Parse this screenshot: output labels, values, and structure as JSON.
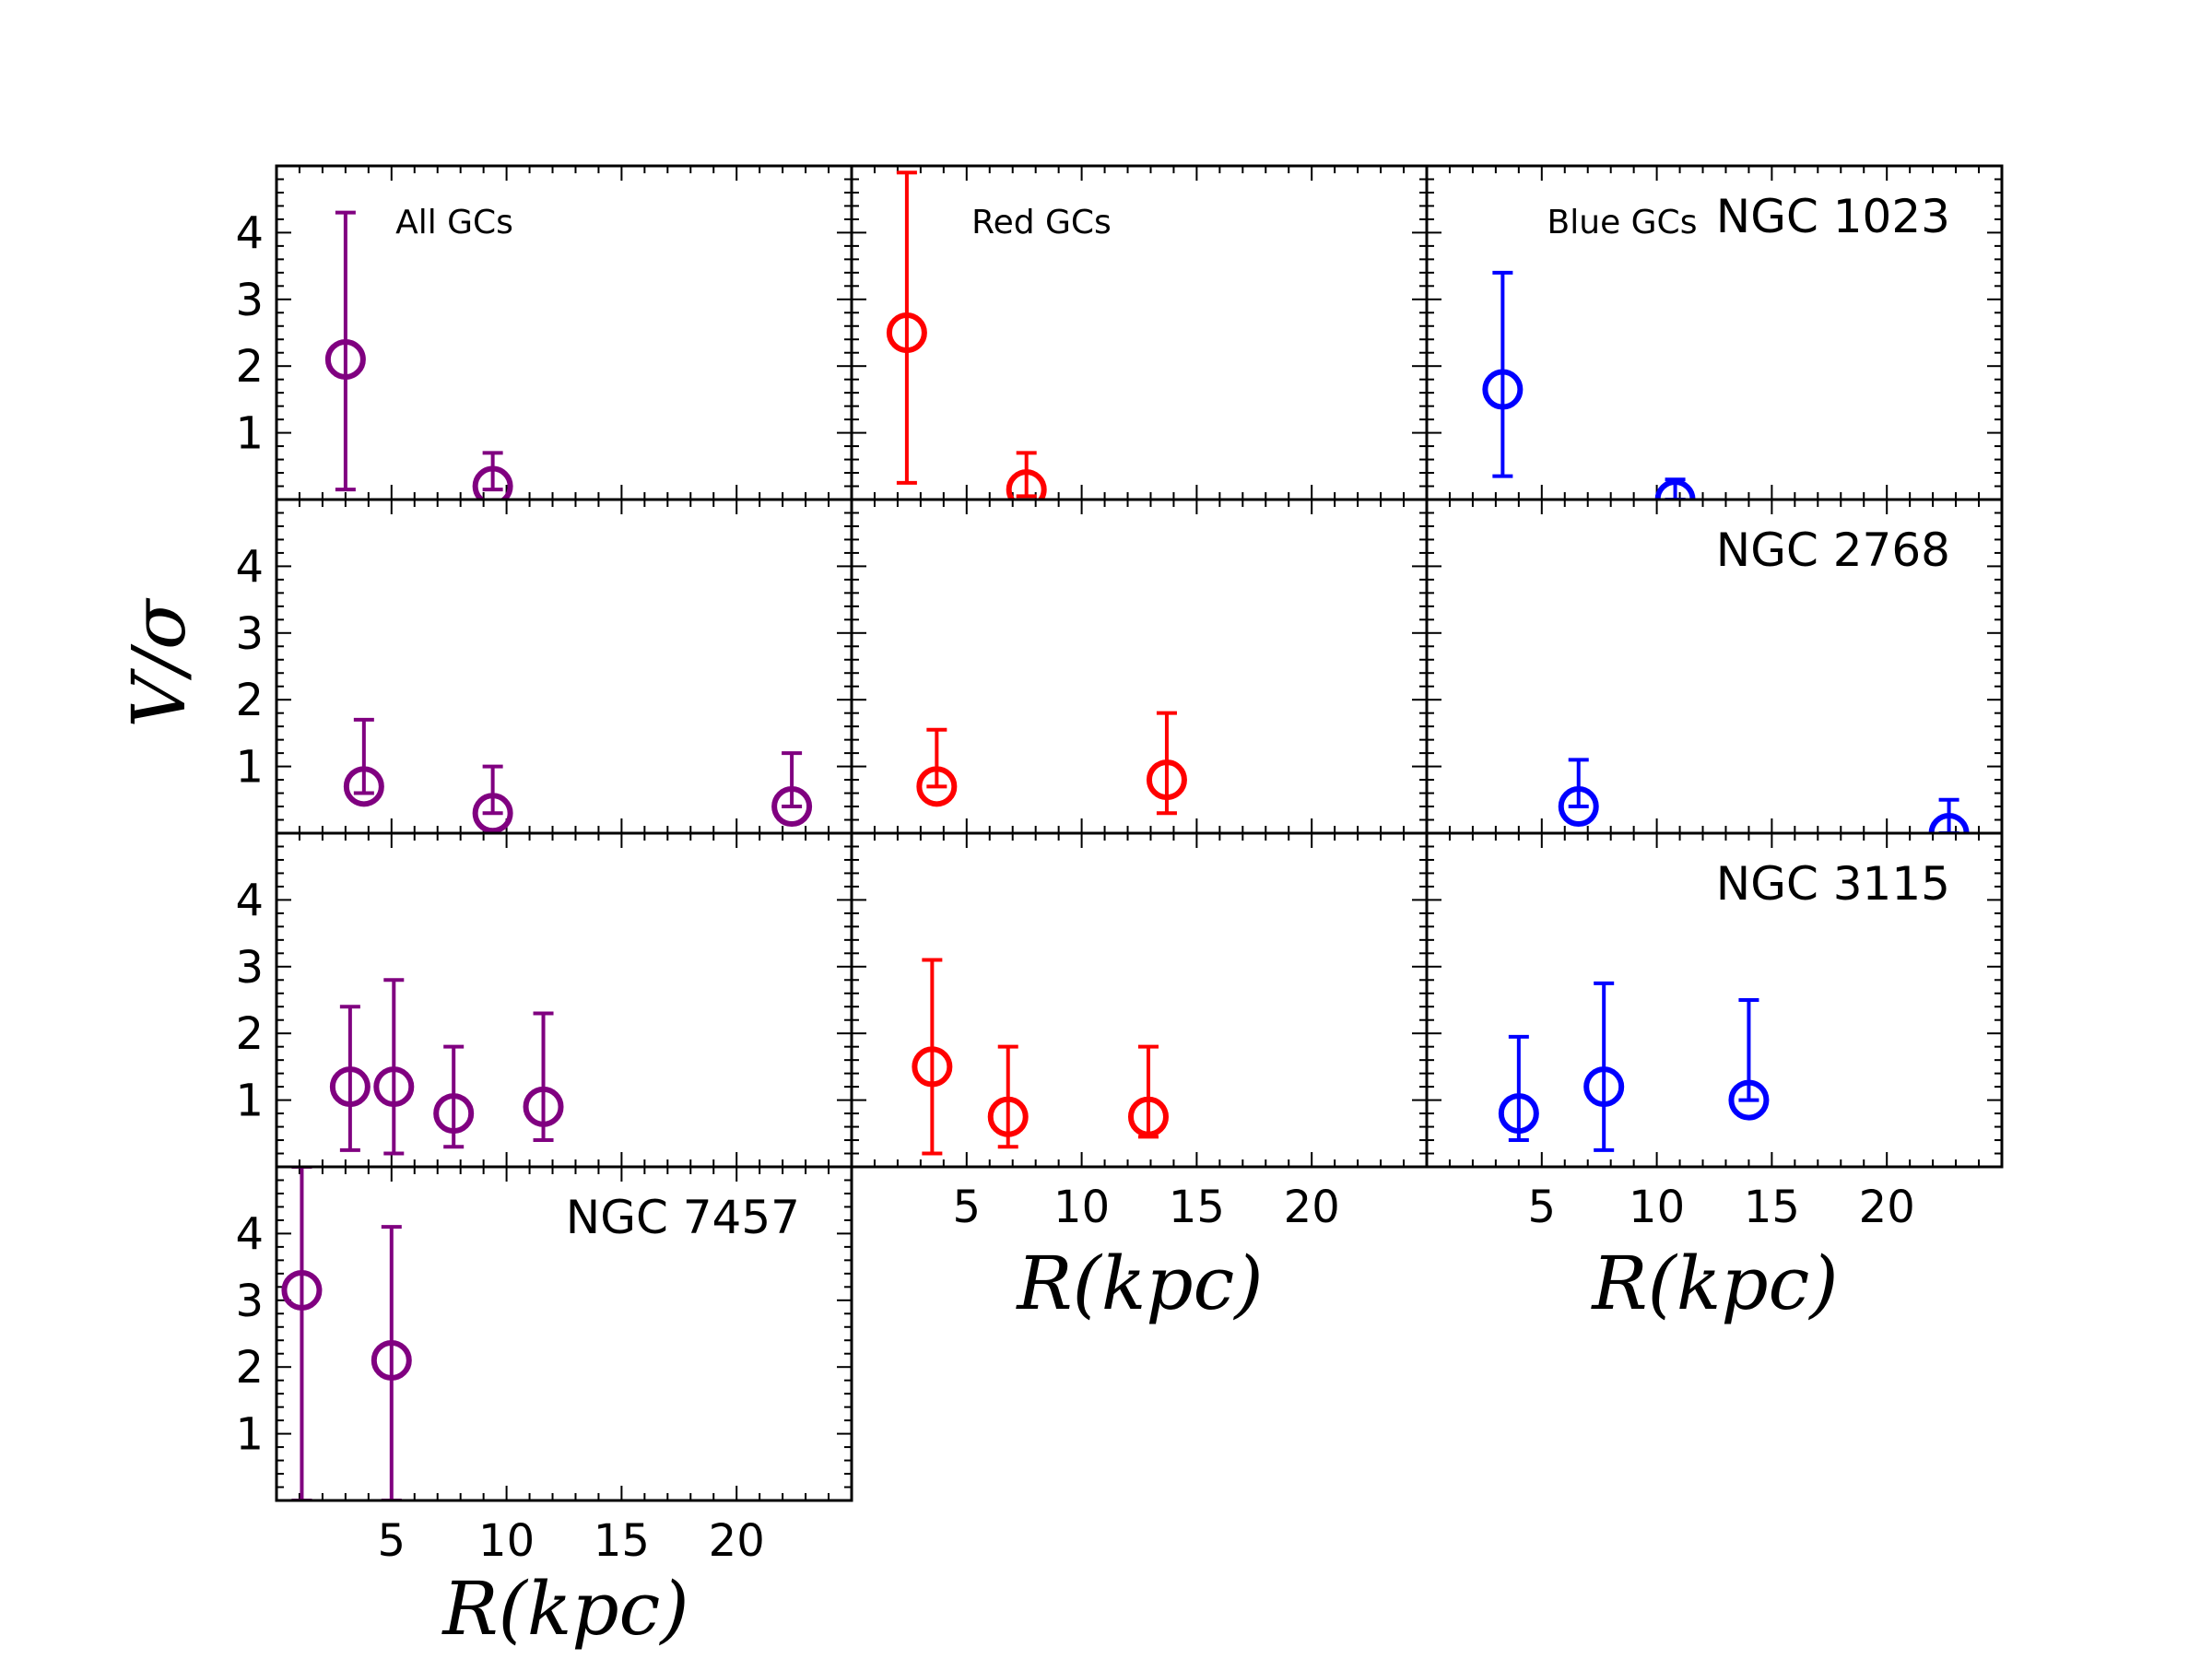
{
  "chart_data": {
    "type": "scatter",
    "xlabel": "R(kpc)",
    "ylabel": "V/σ",
    "xlim": [
      0,
      25
    ],
    "ylim": [
      0,
      5
    ],
    "xticks": [
      5,
      10,
      15,
      20
    ],
    "yticks": [
      1,
      2,
      3,
      4
    ],
    "columns": [
      {
        "name": "All GCs",
        "color": "#800080"
      },
      {
        "name": "Red GCs",
        "color": "#ff0000"
      },
      {
        "name": "Blue GCs",
        "color": "#0000ff"
      }
    ],
    "rows": [
      {
        "galaxy": "NGC 1023",
        "panels": [
          [
            {
              "x": 3.0,
              "y": 2.1,
              "lo": 0.15,
              "hi": 4.3
            },
            {
              "x": 9.4,
              "y": 0.2,
              "lo": 0.15,
              "hi": 0.7
            }
          ],
          [
            {
              "x": 2.4,
              "y": 2.5,
              "lo": 0.25,
              "hi": 4.9
            },
            {
              "x": 7.6,
              "y": 0.15,
              "lo": 0.05,
              "hi": 0.7
            }
          ],
          [
            {
              "x": 3.3,
              "y": 1.65,
              "lo": 0.35,
              "hi": 3.4
            },
            {
              "x": 10.8,
              "y": 0.0,
              "lo": 0.0,
              "hi": 0.3
            }
          ]
        ]
      },
      {
        "galaxy": "NGC 2768",
        "panels": [
          [
            {
              "x": 3.8,
              "y": 0.7,
              "lo": 0.6,
              "hi": 1.7
            },
            {
              "x": 9.4,
              "y": 0.3,
              "lo": 0.3,
              "hi": 1.0
            },
            {
              "x": 22.4,
              "y": 0.4,
              "lo": 0.4,
              "hi": 1.2
            }
          ],
          [
            {
              "x": 3.7,
              "y": 0.7,
              "lo": 0.7,
              "hi": 1.55
            },
            {
              "x": 13.7,
              "y": 0.8,
              "lo": 0.3,
              "hi": 1.8
            }
          ],
          [
            {
              "x": 6.6,
              "y": 0.4,
              "lo": 0.4,
              "hi": 1.1
            },
            {
              "x": 22.7,
              "y": 0.0,
              "lo": 0.0,
              "hi": 0.5
            }
          ]
        ]
      },
      {
        "galaxy": "NGC 3115",
        "panels": [
          [
            {
              "x": 3.2,
              "y": 1.2,
              "lo": 0.25,
              "hi": 2.4
            },
            {
              "x": 5.1,
              "y": 1.2,
              "lo": 0.2,
              "hi": 2.8
            },
            {
              "x": 7.7,
              "y": 0.8,
              "lo": 0.3,
              "hi": 1.8
            },
            {
              "x": 11.6,
              "y": 0.9,
              "lo": 0.4,
              "hi": 2.3
            }
          ],
          [
            {
              "x": 3.5,
              "y": 1.5,
              "lo": 0.2,
              "hi": 3.1
            },
            {
              "x": 6.8,
              "y": 0.75,
              "lo": 0.3,
              "hi": 1.8
            },
            {
              "x": 12.9,
              "y": 0.75,
              "lo": 0.45,
              "hi": 1.8
            }
          ],
          [
            {
              "x": 4.0,
              "y": 0.8,
              "lo": 0.4,
              "hi": 1.95
            },
            {
              "x": 7.7,
              "y": 1.2,
              "lo": 0.25,
              "hi": 2.75
            },
            {
              "x": 14.0,
              "y": 1.0,
              "lo": 1.0,
              "hi": 2.5
            }
          ]
        ]
      },
      {
        "galaxy": "NGC 7457",
        "panels": [
          [
            {
              "x": 1.1,
              "y": 3.15,
              "lo": 0.0,
              "hi": 5.0
            },
            {
              "x": 5.0,
              "y": 2.1,
              "lo": 0.0,
              "hi": 4.1
            }
          ]
        ]
      }
    ]
  }
}
